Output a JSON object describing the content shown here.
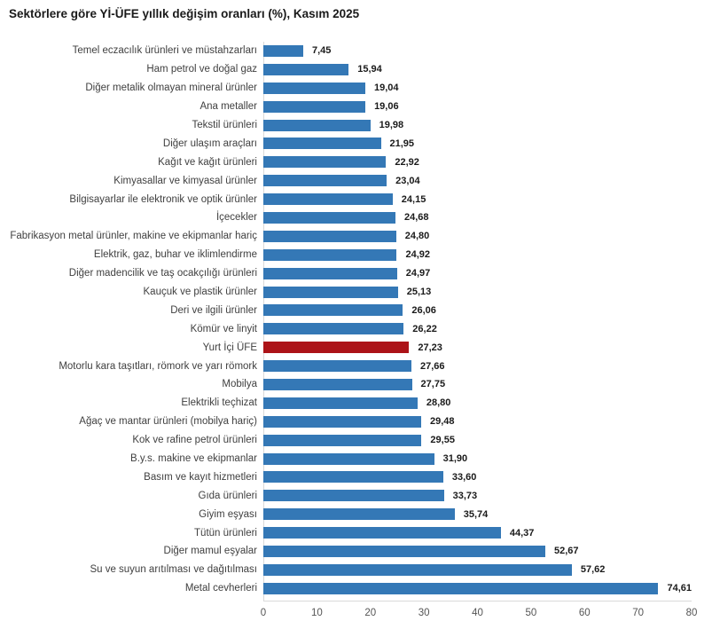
{
  "title": "Sektörlere göre Yİ-ÜFE yıllık değişim oranları (%), Kasım 2025",
  "chart_data": {
    "type": "bar",
    "orientation": "horizontal",
    "title": "Sektörlere göre Yİ-ÜFE yıllık değişim oranları (%), Kasım 2025",
    "xlabel": "",
    "ylabel": "",
    "xlim": [
      0,
      80
    ],
    "x_ticks": [
      0,
      10,
      20,
      30,
      40,
      50,
      60,
      70,
      80
    ],
    "grid": false,
    "bar_color": "#3478b6",
    "highlight_color": "#ac1318",
    "highlight_category": "Yurt İçi ÜFE",
    "highlight_index": 16,
    "categories": [
      "Temel eczacılık ürünleri ve müstahzarları",
      "Ham petrol ve doğal gaz",
      "Diğer metalik olmayan mineral ürünler",
      "Ana metaller",
      "Tekstil ürünleri",
      "Diğer ulaşım araçları",
      "Kağıt ve kağıt ürünleri",
      "Kimyasallar ve kimyasal ürünler",
      "Bilgisayarlar ile elektronik ve optik ürünler",
      "İçecekler",
      "Fabrikasyon metal ürünler, makine ve ekipmanlar hariç",
      "Elektrik, gaz, buhar ve iklimlendirme",
      "Diğer madencilik ve taş ocakçılığı ürünleri",
      "Kauçuk ve plastik ürünler",
      "Deri ve ilgili ürünler",
      "Kömür ve linyit",
      "Yurt İçi ÜFE",
      "Motorlu kara taşıtları, römork ve yarı römork",
      "Mobilya",
      "Elektrikli teçhizat",
      "Ağaç ve mantar ürünleri (mobilya hariç)",
      "Kok ve rafine petrol ürünleri",
      "B.y.s. makine ve ekipmanlar",
      "Basım ve kayıt hizmetleri",
      "Gıda ürünleri",
      "Giyim eşyası",
      "Tütün ürünleri",
      "Diğer mamul eşyalar",
      "Su ve suyun arıtılması ve dağıtılması",
      "Metal cevherleri"
    ],
    "values": [
      7.45,
      15.94,
      19.04,
      19.06,
      19.98,
      21.95,
      22.92,
      23.04,
      24.15,
      24.68,
      24.8,
      24.92,
      24.97,
      25.13,
      26.06,
      26.22,
      27.23,
      27.66,
      27.75,
      28.8,
      29.48,
      29.55,
      31.9,
      33.6,
      33.73,
      35.74,
      44.37,
      52.67,
      57.62,
      74.61
    ],
    "value_labels": [
      "7,45",
      "15,94",
      "19,04",
      "19,06",
      "19,98",
      "21,95",
      "22,92",
      "23,04",
      "24,15",
      "24,68",
      "24,80",
      "24,92",
      "24,97",
      "25,13",
      "26,06",
      "26,22",
      "27,23",
      "27,66",
      "27,75",
      "28,80",
      "29,48",
      "29,55",
      "31,90",
      "33,60",
      "33,73",
      "35,74",
      "44,37",
      "52,67",
      "57,62",
      "74,61"
    ]
  }
}
